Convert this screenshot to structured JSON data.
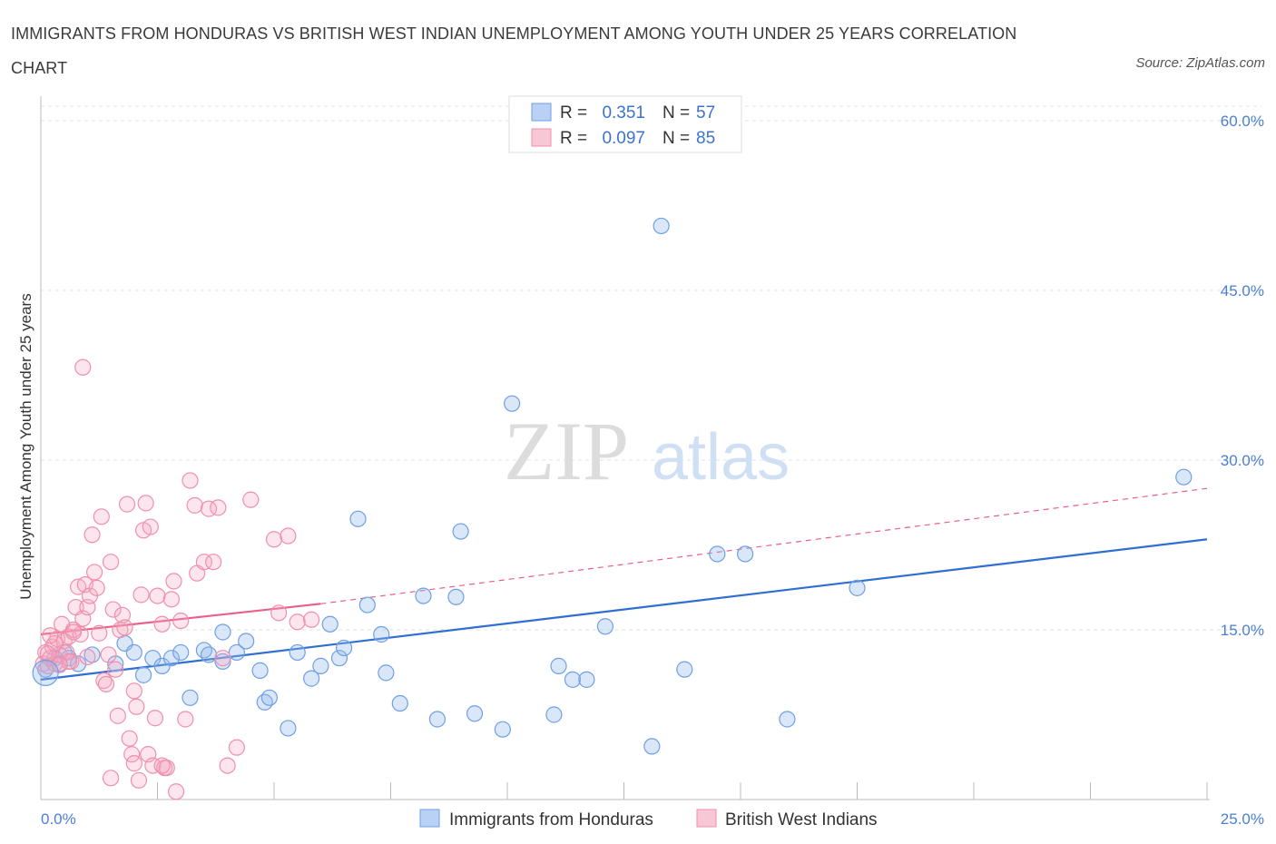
{
  "title": "IMMIGRANTS FROM HONDURAS VS BRITISH WEST INDIAN UNEMPLOYMENT AMONG YOUTH UNDER 25 YEARS CORRELATION CHART",
  "source": "Source: ZipAtlas.com",
  "watermark": {
    "zip": "ZIP",
    "atlas": "atlas"
  },
  "colors": {
    "blue": "#6e9fe6",
    "blue_line": "#2f6fd1",
    "pink": "#f08fab",
    "pink_line": "#e8608a",
    "accent_text": "#3d73d0"
  },
  "legend": {
    "r_label": "R =",
    "n_label": "N =",
    "rows": [
      {
        "r": "0.351",
        "n": "57"
      },
      {
        "r": "0.097",
        "n": "85"
      }
    ]
  },
  "chart_data": {
    "type": "scatter",
    "xlabel": "",
    "ylabel": "Unemployment Among Youth under 25 years",
    "xlim": [
      0,
      25
    ],
    "ylim": [
      0,
      60
    ],
    "x_tick_labels": [
      "0.0%",
      "25.0%"
    ],
    "y_ticks": [
      15,
      30,
      45,
      60
    ],
    "y_tick_labels": [
      "15.0%",
      "30.0%",
      "45.0%",
      "60.0%"
    ],
    "grid": true,
    "series": [
      {
        "name": "Immigrants from Honduras",
        "r": 0.351,
        "n": 57,
        "trend": {
          "x": [
            0,
            25
          ],
          "y": [
            10.6,
            23.0
          ],
          "dashed_extension": false
        },
        "points": [
          [
            0.1,
            11.5
          ],
          [
            0.3,
            12.5
          ],
          [
            0.4,
            12.0
          ],
          [
            0.5,
            13.0
          ],
          [
            0.6,
            12.5
          ],
          [
            0.8,
            12.0
          ],
          [
            1.1,
            12.8
          ],
          [
            1.6,
            12.0
          ],
          [
            1.8,
            13.8
          ],
          [
            2.0,
            13.0
          ],
          [
            2.2,
            11.0
          ],
          [
            2.4,
            12.5
          ],
          [
            2.6,
            11.8
          ],
          [
            2.8,
            12.5
          ],
          [
            3.0,
            13.0
          ],
          [
            3.2,
            9.0
          ],
          [
            3.5,
            13.2
          ],
          [
            3.6,
            12.8
          ],
          [
            3.9,
            12.2
          ],
          [
            3.9,
            14.8
          ],
          [
            4.2,
            13.0
          ],
          [
            4.4,
            14.0
          ],
          [
            4.7,
            11.4
          ],
          [
            4.8,
            8.6
          ],
          [
            4.9,
            9.0
          ],
          [
            5.3,
            6.3
          ],
          [
            5.5,
            13.0
          ],
          [
            5.8,
            10.7
          ],
          [
            6.0,
            11.8
          ],
          [
            6.2,
            15.5
          ],
          [
            6.4,
            12.5
          ],
          [
            6.5,
            13.4
          ],
          [
            6.8,
            24.8
          ],
          [
            7.0,
            17.2
          ],
          [
            7.3,
            14.6
          ],
          [
            7.4,
            11.2
          ],
          [
            7.7,
            8.5
          ],
          [
            8.2,
            18.0
          ],
          [
            8.5,
            7.1
          ],
          [
            8.9,
            17.9
          ],
          [
            9.0,
            23.7
          ],
          [
            9.3,
            7.6
          ],
          [
            9.9,
            6.2
          ],
          [
            10.1,
            35.0
          ],
          [
            11.0,
            7.5
          ],
          [
            11.1,
            11.8
          ],
          [
            11.4,
            10.6
          ],
          [
            11.7,
            10.6
          ],
          [
            12.1,
            15.3
          ],
          [
            13.1,
            4.7
          ],
          [
            13.3,
            50.7
          ],
          [
            13.8,
            11.5
          ],
          [
            14.5,
            21.7
          ],
          [
            15.1,
            21.7
          ],
          [
            16.0,
            7.1
          ],
          [
            17.5,
            18.7
          ],
          [
            24.5,
            28.5
          ]
        ]
      },
      {
        "name": "British West Indians",
        "r": 0.097,
        "n": 85,
        "trend": {
          "x": [
            0,
            6
          ],
          "y": [
            14.6,
            17.3
          ],
          "dashed_extension": {
            "x": [
              6,
              25
            ],
            "y": [
              17.3,
              27.5
            ]
          }
        },
        "points": [
          [
            0.05,
            12.0
          ],
          [
            0.1,
            13.0
          ],
          [
            0.15,
            11.8
          ],
          [
            0.2,
            12.5
          ],
          [
            0.25,
            13.5
          ],
          [
            0.3,
            12.0
          ],
          [
            0.35,
            14.2
          ],
          [
            0.4,
            12.8
          ],
          [
            0.45,
            15.5
          ],
          [
            0.5,
            14.0
          ],
          [
            0.55,
            13.0
          ],
          [
            0.6,
            14.4
          ],
          [
            0.65,
            12.2
          ],
          [
            0.7,
            15.0
          ],
          [
            0.75,
            17.0
          ],
          [
            0.8,
            18.8
          ],
          [
            0.85,
            14.6
          ],
          [
            0.9,
            16.0
          ],
          [
            0.95,
            19.0
          ],
          [
            1.0,
            17.0
          ],
          [
            1.05,
            18.0
          ],
          [
            1.1,
            23.4
          ],
          [
            1.15,
            20.1
          ],
          [
            1.2,
            18.7
          ],
          [
            1.25,
            14.7
          ],
          [
            1.3,
            25.0
          ],
          [
            1.35,
            10.5
          ],
          [
            1.4,
            10.2
          ],
          [
            1.45,
            12.8
          ],
          [
            1.5,
            21.0
          ],
          [
            1.55,
            16.8
          ],
          [
            1.6,
            11.5
          ],
          [
            1.65,
            7.4
          ],
          [
            1.7,
            15.0
          ],
          [
            1.75,
            16.3
          ],
          [
            1.8,
            15.2
          ],
          [
            1.85,
            26.1
          ],
          [
            1.9,
            5.4
          ],
          [
            1.95,
            4.0
          ],
          [
            2.0,
            9.6
          ],
          [
            2.05,
            8.2
          ],
          [
            2.1,
            1.7
          ],
          [
            2.15,
            18.1
          ],
          [
            2.2,
            23.8
          ],
          [
            2.25,
            26.2
          ],
          [
            2.3,
            4.0
          ],
          [
            2.35,
            24.1
          ],
          [
            2.4,
            3.0
          ],
          [
            2.45,
            7.2
          ],
          [
            2.5,
            18.0
          ],
          [
            2.6,
            15.5
          ],
          [
            2.65,
            2.8
          ],
          [
            2.7,
            2.8
          ],
          [
            2.8,
            17.7
          ],
          [
            2.85,
            19.3
          ],
          [
            2.9,
            0.7
          ],
          [
            3.0,
            15.8
          ],
          [
            3.1,
            7.1
          ],
          [
            3.2,
            28.2
          ],
          [
            3.3,
            26.0
          ],
          [
            3.35,
            20.0
          ],
          [
            3.5,
            21.0
          ],
          [
            3.6,
            25.7
          ],
          [
            3.7,
            21.0
          ],
          [
            3.8,
            25.8
          ],
          [
            3.9,
            12.5
          ],
          [
            4.0,
            3.0
          ],
          [
            4.2,
            4.6
          ],
          [
            4.5,
            26.5
          ],
          [
            5.0,
            23.0
          ],
          [
            5.1,
            16.5
          ],
          [
            5.3,
            23.3
          ],
          [
            5.5,
            15.7
          ],
          [
            5.8,
            15.9
          ],
          [
            0.9,
            38.2
          ],
          [
            1.0,
            12.6
          ],
          [
            0.6,
            12.2
          ],
          [
            0.3,
            13.8
          ],
          [
            0.2,
            14.5
          ],
          [
            0.4,
            11.9
          ],
          [
            0.7,
            14.8
          ],
          [
            1.5,
            1.9
          ],
          [
            2.0,
            3.2
          ],
          [
            2.6,
            3.0
          ],
          [
            0.15,
            12.9
          ]
        ]
      }
    ]
  }
}
